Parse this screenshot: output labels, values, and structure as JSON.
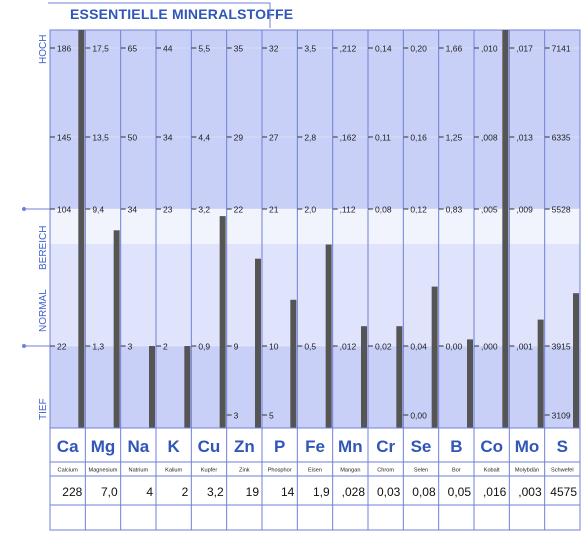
{
  "title": "ESSENTIELLE MINERALSTOFFE",
  "side_labels": {
    "high": "HOCH",
    "normal": "NORMAL",
    "range": "BEREICH",
    "low": "TIEF"
  },
  "colors": {
    "band_dark": "#c8d0f7",
    "band_mid": "#dfe3fb",
    "band_light": "#f1f3fd",
    "grid": "#6f80d8",
    "bar": "#555555",
    "symbol": "#2f56b8",
    "text": "#222222"
  },
  "chart_data": {
    "type": "bar",
    "title": "ESSENTIELLE MINERALSTOFFE",
    "zones": [
      "HOCH",
      "NORMAL BEREICH",
      "TIEF"
    ],
    "grid_levels": [
      "HOCH",
      "level-2",
      "upper-normal",
      "lower-normal",
      "TIEF"
    ],
    "categories": [
      "Ca",
      "Mg",
      "Na",
      "K",
      "Cu",
      "Zn",
      "P",
      "Fe",
      "Mn",
      "Cr",
      "Se",
      "B",
      "Co",
      "Mo",
      "S"
    ],
    "names": [
      "Calcium",
      "Magnesium",
      "Natrium",
      "Kalium",
      "Kupfer",
      "Zink",
      "Phosphor",
      "Eisen",
      "Mangan",
      "Chrom",
      "Selen",
      "Bor",
      "Kobalt",
      "Molybdän",
      "Schwefel"
    ],
    "values": [
      "228",
      "7,0",
      "4",
      "2",
      "3,2",
      "19",
      "14",
      "1,9",
      ",028",
      "0,03",
      "0,08",
      "0,05",
      ",016",
      ",003",
      "4575"
    ],
    "ticks": [
      [
        "186",
        "145",
        "104",
        "22",
        ""
      ],
      [
        "17,5",
        "13,5",
        "9,4",
        "1,3",
        ""
      ],
      [
        "65",
        "50",
        "34",
        "3",
        ""
      ],
      [
        "44",
        "34",
        "23",
        "2",
        ""
      ],
      [
        "5,5",
        "4,4",
        "3,2",
        "0,9",
        ""
      ],
      [
        "35",
        "29",
        "22",
        "9",
        "3"
      ],
      [
        "32",
        "27",
        "21",
        "10",
        "5"
      ],
      [
        "3,5",
        "2,8",
        "2,0",
        "0,5",
        ""
      ],
      [
        ",212",
        ",162",
        ",112",
        ",012",
        ""
      ],
      [
        "0,14",
        "0,11",
        "0,08",
        "0,02",
        ""
      ],
      [
        "0,20",
        "0,16",
        "0,12",
        "0,04",
        "0,00"
      ],
      [
        "1,66",
        "1,25",
        "0,83",
        "0,00",
        ""
      ],
      [
        ",010",
        ",008",
        ",005",
        ",000",
        ""
      ],
      [
        ",017",
        ",013",
        ",009",
        ",001",
        ""
      ],
      [
        "7141",
        "6335",
        "5528",
        "3915",
        "3109"
      ]
    ],
    "bar_levels": [
      5.0,
      2.7,
      1.0,
      1.0,
      2.9,
      2.3,
      1.7,
      2.5,
      1.3,
      1.3,
      1.9,
      1.1,
      5.0,
      1.4,
      1.8
    ]
  }
}
